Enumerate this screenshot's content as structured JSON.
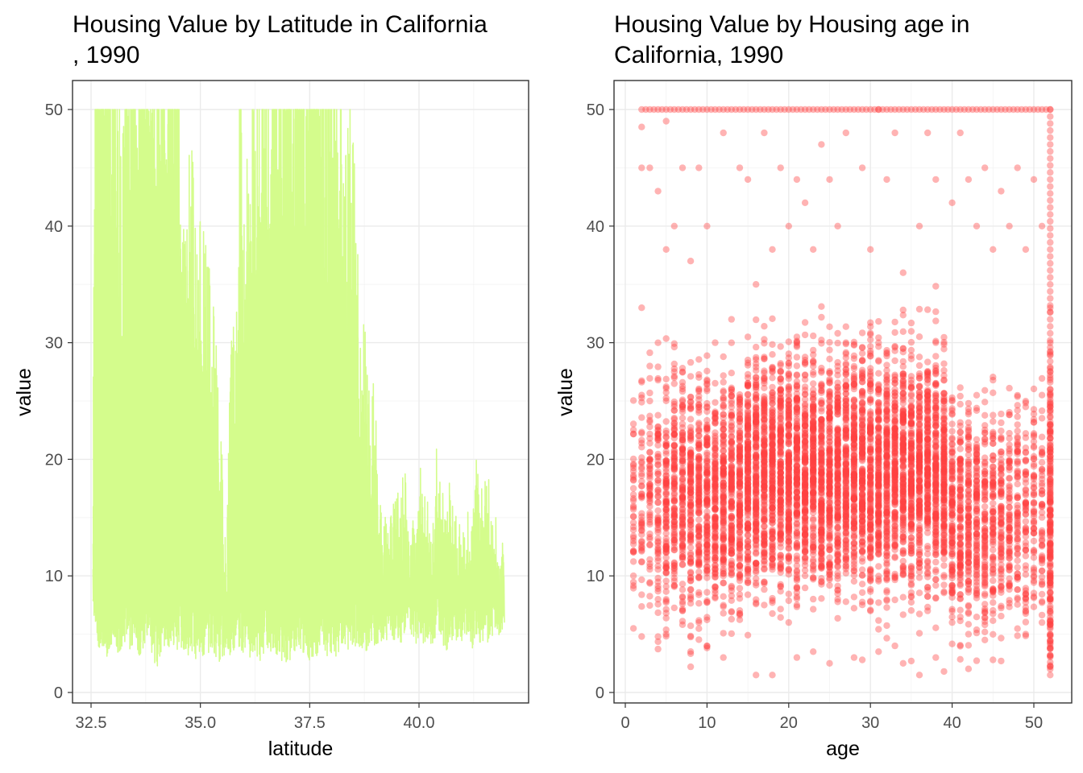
{
  "chart_data": [
    {
      "type": "area",
      "title": "Housing Value by Latitude in California\n, 1990",
      "xlabel": "latitude",
      "ylabel": "value",
      "xlim": [
        32.5,
        41.95
      ],
      "ylim": [
        0,
        50
      ],
      "x_ticks": [
        "32.5",
        "35.0",
        "37.5",
        "40.0"
      ],
      "x_tick_values": [
        32.5,
        35.0,
        37.5,
        40.0
      ],
      "y_ticks": [
        "0",
        "10",
        "20",
        "30",
        "40",
        "50"
      ],
      "y_tick_values": [
        0,
        10,
        20,
        30,
        40,
        50
      ],
      "grid": true,
      "color": "#d4fc8c",
      "series": [
        {
          "x": [
            32.54,
            32.6,
            32.65,
            32.7,
            32.75,
            32.8,
            32.85,
            32.9,
            32.95,
            33.0,
            33.05,
            33.1,
            33.2,
            33.3,
            33.4,
            33.5,
            33.6,
            33.7,
            33.8,
            33.9,
            34.0,
            34.1,
            34.2,
            34.3,
            34.4,
            34.5,
            34.6,
            34.7,
            34.8,
            34.9,
            35.0,
            35.1,
            35.2,
            35.3,
            35.4,
            35.5,
            35.6,
            35.7,
            35.8,
            35.9,
            36.0,
            36.1,
            36.2,
            36.3,
            36.4,
            36.5,
            36.6,
            36.7,
            36.8,
            36.9,
            37.0,
            37.1,
            37.2,
            37.3,
            37.4,
            37.5,
            37.6,
            37.7,
            37.8,
            37.9,
            38.0,
            38.1,
            38.2,
            38.3,
            38.4,
            38.5,
            38.6,
            38.7,
            38.8,
            38.9,
            39.0,
            39.1,
            39.2,
            39.3,
            39.4,
            39.5,
            39.6,
            39.7,
            39.8,
            39.9,
            40.0,
            40.1,
            40.2,
            40.3,
            40.4,
            40.5,
            40.6,
            40.7,
            40.8,
            40.9,
            41.0,
            41.1,
            41.2,
            41.3,
            41.4,
            41.5,
            41.6,
            41.7,
            41.8,
            41.95
          ],
          "high": [
            14.5,
            48,
            50,
            50,
            50,
            50,
            50,
            50,
            40,
            50,
            38,
            45,
            30,
            50,
            50,
            50,
            50,
            50,
            50,
            50,
            50,
            50,
            50,
            50,
            48,
            50,
            30,
            33,
            36,
            30,
            32,
            28,
            27,
            25,
            22,
            15,
            9,
            25,
            22,
            45,
            30,
            38,
            40,
            42,
            45,
            49,
            50,
            50,
            50,
            50,
            50,
            50,
            50,
            50,
            50,
            50,
            50,
            50,
            46,
            44,
            44,
            48,
            40,
            39,
            38,
            36,
            28,
            25,
            22,
            21,
            19,
            16,
            12,
            11,
            13,
            13,
            14,
            15,
            11,
            12,
            15,
            14,
            13,
            10,
            16,
            14,
            12,
            15,
            13,
            11,
            14,
            12,
            13,
            16,
            15,
            15,
            14,
            13,
            11,
            12
          ],
          "low": [
            7,
            5,
            4,
            3.5,
            4,
            4,
            3,
            3.5,
            4,
            4,
            4.5,
            3,
            4,
            4.5,
            3.5,
            4.5,
            3,
            4,
            5,
            3,
            2,
            3.5,
            3.5,
            4,
            4,
            3.5,
            3.5,
            3,
            3.5,
            2.5,
            2.5,
            3,
            3.5,
            3.5,
            2.5,
            3,
            3.5,
            3,
            4,
            3,
            3.5,
            2.5,
            3,
            2,
            3,
            4,
            3.5,
            3.5,
            2.5,
            3,
            2,
            3,
            3.5,
            3.5,
            3,
            2,
            2.5,
            3.5,
            4,
            3,
            3.5,
            3,
            4,
            4,
            3.5,
            3.5,
            4,
            3,
            3.5,
            4,
            4,
            4.5,
            4,
            4.5,
            4.5,
            4.5,
            4,
            5,
            5,
            4,
            4.5,
            4,
            4.5,
            4,
            5,
            4.5,
            3.5,
            4,
            4.5,
            4.5,
            4,
            5,
            3.5,
            4.5,
            4,
            4.5,
            4,
            4.5,
            4.5,
            5
          ]
        }
      ]
    },
    {
      "type": "scatter",
      "title": "Housing Value by Housing age in\nCalifornia, 1990",
      "xlabel": "age",
      "ylabel": "value",
      "xlim": [
        -0.5,
        52.5
      ],
      "ylim": [
        0,
        50
      ],
      "x_ticks": [
        "0",
        "10",
        "20",
        "30",
        "40",
        "50"
      ],
      "x_tick_values": [
        0,
        10,
        20,
        30,
        40,
        50
      ],
      "y_ticks": [
        "0",
        "10",
        "20",
        "30",
        "40",
        "50"
      ],
      "y_tick_values": [
        0,
        10,
        20,
        30,
        40,
        50
      ],
      "grid": true,
      "color": "#ff4040",
      "point_opacity": 0.4,
      "series": [
        {
          "name": "",
          "x": [
            1,
            1,
            1,
            2,
            2,
            2,
            2,
            3,
            3,
            3,
            4,
            4,
            4,
            5,
            5,
            5,
            5,
            6,
            6,
            7,
            7,
            8,
            8,
            9,
            9,
            10,
            10,
            11,
            11,
            12,
            12,
            13,
            13,
            14,
            14,
            15,
            15,
            16,
            16,
            17,
            17,
            18,
            18,
            19,
            19,
            20,
            20,
            21,
            21,
            22,
            22,
            23,
            23,
            24,
            24,
            25,
            25,
            26,
            26,
            27,
            27,
            28,
            28,
            29,
            29,
            30,
            30,
            31,
            31,
            32,
            32,
            33,
            33,
            34,
            34,
            35,
            35,
            36,
            36,
            37,
            37,
            38,
            38,
            39,
            39,
            40,
            40,
            41,
            41,
            42,
            42,
            43,
            43,
            44,
            44,
            45,
            45,
            46,
            46,
            47,
            47,
            48,
            48,
            49,
            49,
            50,
            50,
            51,
            51,
            52,
            52,
            52,
            52,
            52
          ],
          "y": [
            19,
            14.2,
            5.5,
            48.5,
            33,
            4.8,
            45,
            45,
            28,
            25,
            43,
            8,
            22,
            49,
            5,
            38,
            12,
            40,
            18,
            45,
            7,
            2.2,
            37,
            45,
            6,
            40,
            4,
            30,
            15,
            48,
            3,
            32,
            9,
            45,
            20,
            44,
            12,
            1.5,
            35,
            48,
            20,
            1.5,
            38,
            45,
            25,
            40,
            6,
            3,
            44,
            42,
            15,
            3.5,
            38,
            47,
            12,
            44,
            2.5,
            40,
            8,
            48,
            30,
            3,
            20,
            45,
            2.8,
            38,
            14,
            50,
            3.5,
            44,
            25,
            48,
            4,
            2.5,
            36,
            2.7,
            18,
            1.5,
            40,
            48,
            7,
            3,
            44,
            1.8,
            22,
            42,
            6,
            48,
            12,
            44,
            5,
            40,
            20,
            4.5,
            45,
            38,
            2.8,
            2.7,
            43,
            40,
            12,
            45,
            8,
            38,
            5,
            44,
            10,
            40,
            6,
            1.5,
            2.2,
            8,
            30,
            50
          ]
        }
      ]
    }
  ]
}
